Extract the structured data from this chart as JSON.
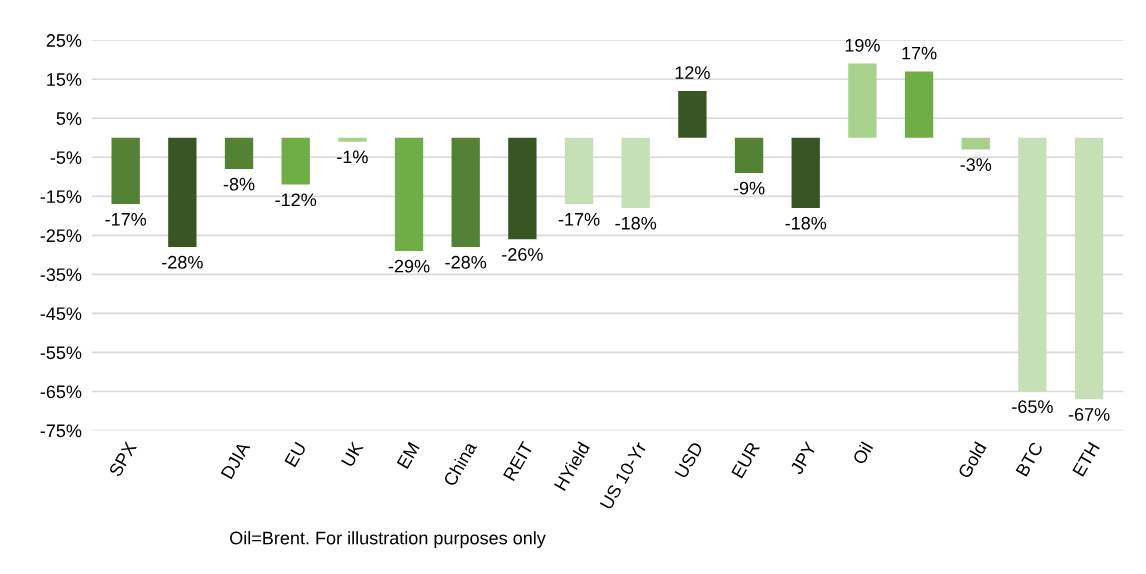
{
  "chart_data": {
    "type": "bar",
    "categories": [
      "SPX",
      null,
      "DJIA",
      "EU",
      "UK",
      "EM",
      "China",
      "REIT",
      "HYield",
      "US 10-Yr",
      "USD",
      "EUR",
      "JPY",
      "Oil",
      null,
      "Gold",
      "BTC",
      "ETH"
    ],
    "values": [
      -17,
      -28,
      -8,
      -12,
      -1,
      -29,
      -28,
      -26,
      -17,
      -18,
      12,
      -9,
      -18,
      19,
      17,
      -3,
      -65,
      -67
    ],
    "colors": [
      "#548235",
      "#375623",
      "#548235",
      "#70ad47",
      "#a9d18e",
      "#70ad47",
      "#548235",
      "#375623",
      "#c5e0b4",
      "#c5e0b4",
      "#375623",
      "#548235",
      "#375623",
      "#a9d18e",
      "#70ad47",
      "#a9d18e",
      "#c5e0b4",
      "#c5e0b4"
    ],
    "value_labels": [
      "-17%",
      "-28%",
      "-8%",
      "-12%",
      "-1%",
      "-29%",
      "-28%",
      "-26%",
      "-17%",
      "-18%",
      "12%",
      "-9%",
      "-18%",
      "19%",
      "17%",
      "-3%",
      "-65%",
      "-67%"
    ],
    "ylim": [
      -75,
      25
    ],
    "yticks": [
      {
        "value": 25,
        "label": "25%"
      },
      {
        "value": 15,
        "label": "15%"
      },
      {
        "value": 5,
        "label": "5%"
      },
      {
        "value": -5,
        "label": "-5%"
      },
      {
        "value": -15,
        "label": "-15%"
      },
      {
        "value": -25,
        "label": "-25%"
      },
      {
        "value": -35,
        "label": "-35%"
      },
      {
        "value": -45,
        "label": "-45%"
      },
      {
        "value": -55,
        "label": "-55%"
      },
      {
        "value": -65,
        "label": "-65%"
      },
      {
        "value": -75,
        "label": "-75%"
      }
    ],
    "grid": "y",
    "annotations": [
      "Oil=Brent. For illustration purposes only"
    ]
  }
}
